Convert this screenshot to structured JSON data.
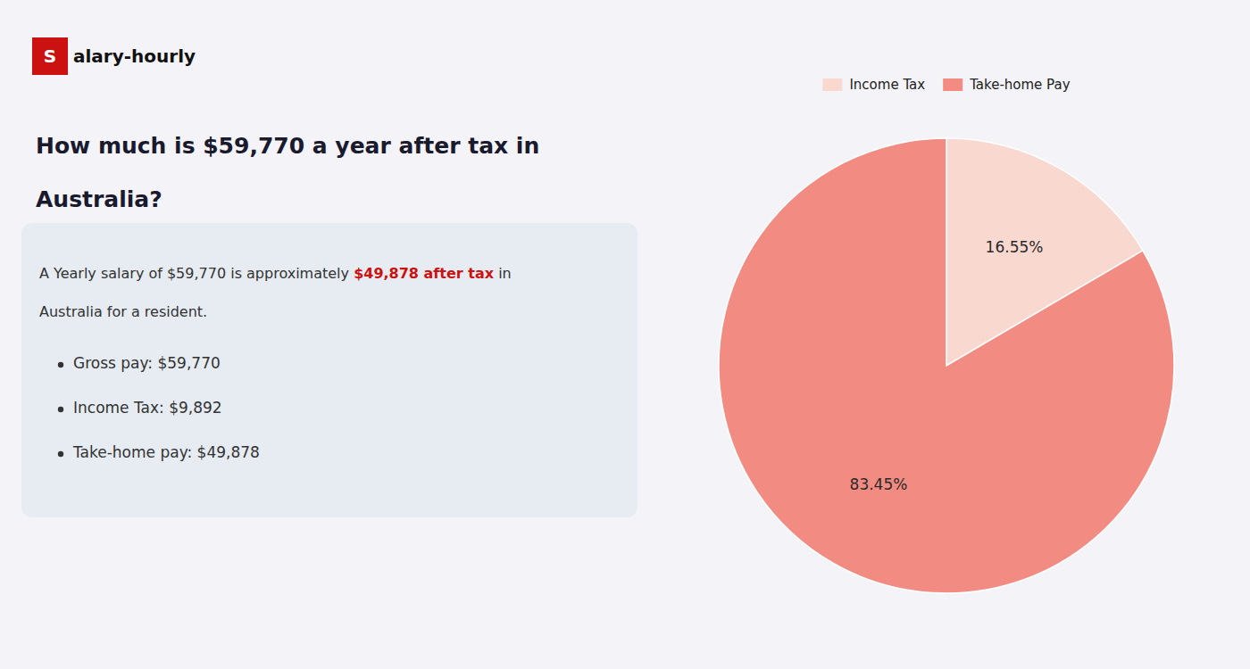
{
  "chart_data": {
    "type": "pie",
    "title": [
      "How much is $59,770 a year after tax in",
      "Australia?"
    ],
    "annotations": [
      {
        "text": "S",
        "color": "#cc1111"
      },
      {
        "text": "alary-hourly"
      },
      {
        "text": "A Yearly salary of $59,770 is approximately "
      },
      {
        "text": "$49,878 after tax",
        "color": "#cc1111"
      },
      {
        "text": " in"
      },
      {
        "text": "Australia for a resident."
      },
      {
        "text": "Gross pay: $59,770"
      },
      {
        "text": "Income Tax: $9,892"
      },
      {
        "text": "Take-home pay: $49,878"
      }
    ],
    "categories": [
      "Income Tax",
      "Take-home Pay"
    ],
    "values": [
      16.55,
      83.45
    ],
    "value_labels": [
      "16.55%",
      "83.45%"
    ],
    "colors": [
      "#f9d8d0",
      "#f28b82"
    ],
    "data_labels": true,
    "legend": "top"
  }
}
